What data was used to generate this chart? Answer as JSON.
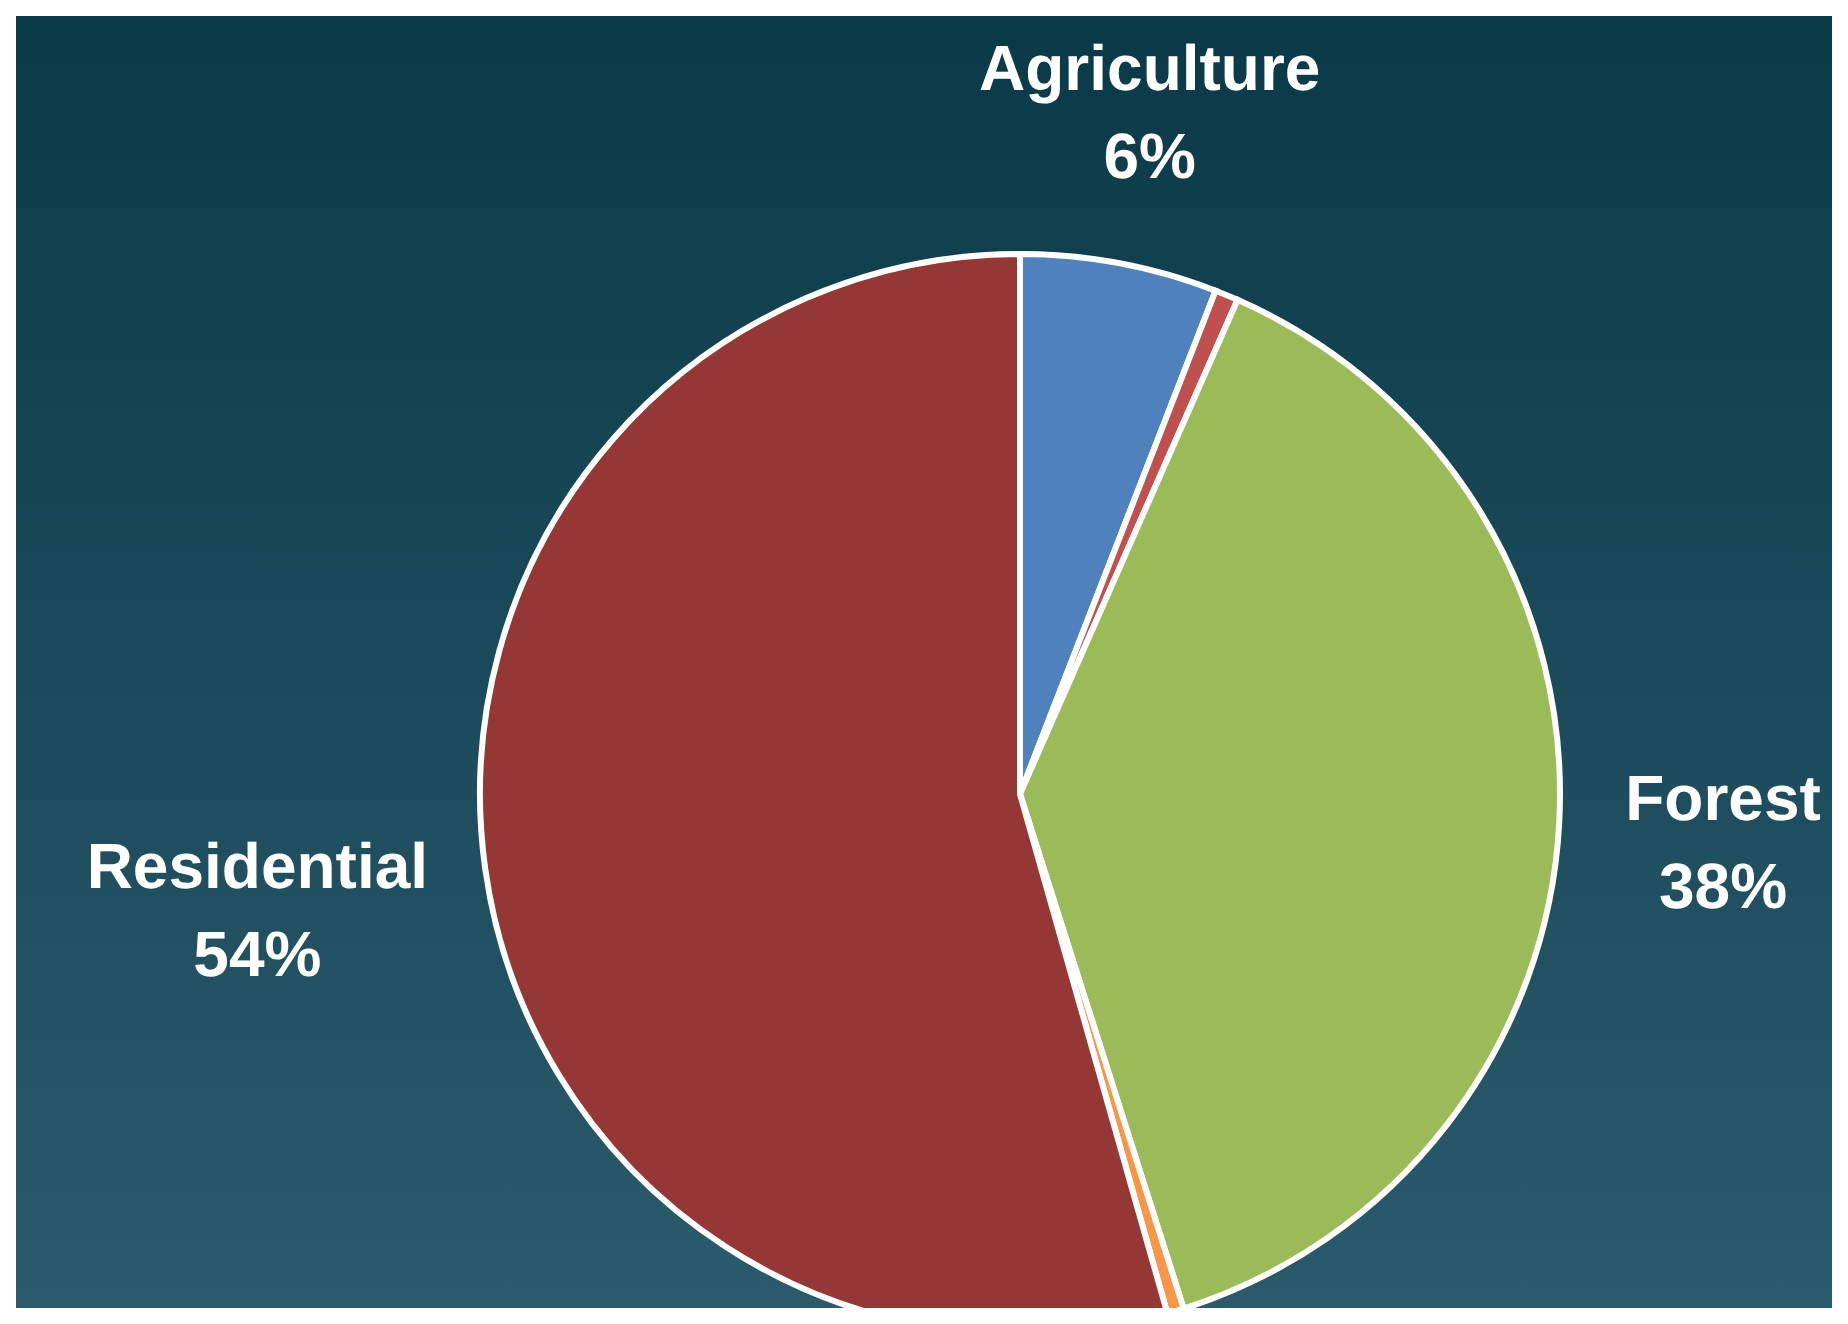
{
  "chart_data": {
    "type": "pie",
    "categories": [
      "Agriculture",
      null,
      "Forest",
      null,
      "Residential"
    ],
    "values": [
      5.9,
      0.7,
      38.5,
      0.5,
      54.4
    ],
    "colors": [
      "#4f81bd",
      "#c0504d",
      "#9bbb59",
      "#f79646",
      "#953735"
    ],
    "value_labels": [
      "6%",
      null,
      "38%",
      null,
      "54%"
    ],
    "legend": false
  }
}
